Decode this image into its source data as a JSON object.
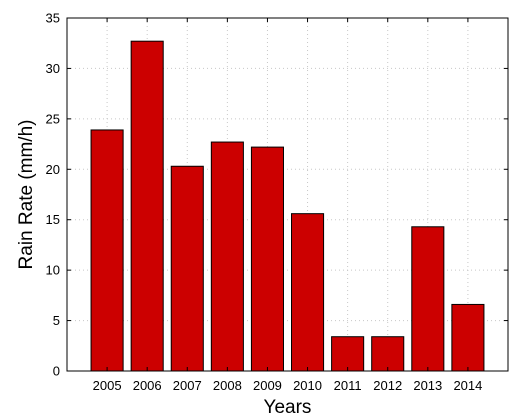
{
  "chart_data": {
    "type": "bar",
    "categories": [
      "2005",
      "2006",
      "2007",
      "2008",
      "2009",
      "2010",
      "2011",
      "2012",
      "2013",
      "2014"
    ],
    "values": [
      23.9,
      32.7,
      20.3,
      22.7,
      22.2,
      15.6,
      3.4,
      3.4,
      14.3,
      6.6
    ],
    "title": "",
    "xlabel": "Years",
    "ylabel": "Rain Rate (mm/h)",
    "ylim": [
      0,
      35
    ],
    "yticks": [
      0,
      5,
      10,
      15,
      20,
      25,
      30,
      35
    ],
    "grid": true,
    "bar_color": "#cc0000",
    "bar_edge_color": "#000000"
  }
}
